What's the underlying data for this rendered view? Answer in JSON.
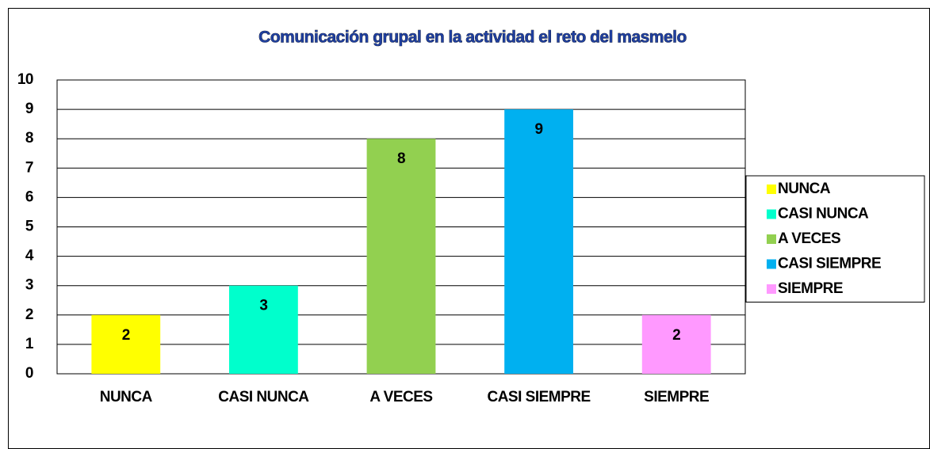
{
  "chart_data": {
    "type": "bar",
    "title": "Comunicación grupal en la actividad el reto del masmelo",
    "categories": [
      "NUNCA",
      "CASI NUNCA",
      "A VECES",
      "CASI SIEMPRE",
      "SIEMPRE"
    ],
    "values": [
      2,
      3,
      8,
      9,
      2
    ],
    "colors": [
      "#ffff00",
      "#00ffcc",
      "#92d050",
      "#00b0f0",
      "#ff99ff"
    ],
    "ylim": [
      0,
      10
    ],
    "yticks": [
      0,
      1,
      2,
      3,
      4,
      5,
      6,
      7,
      8,
      9,
      10
    ],
    "grid": true,
    "legend": "right",
    "data_labels": true
  }
}
